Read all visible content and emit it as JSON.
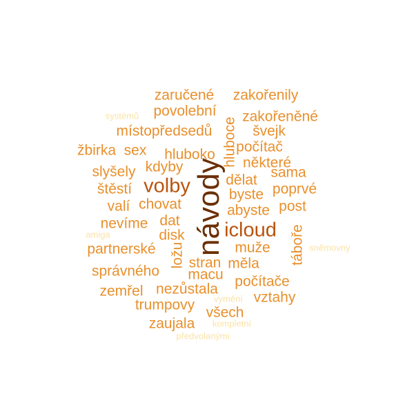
{
  "palette": {
    "pale": "#fbe3a6",
    "light": "#f2a53a",
    "mid": "#e8902c",
    "dark": "#b9530c",
    "darkest": "#6b2f04"
  },
  "words": [
    {
      "text": "návody",
      "color": "darkest",
      "vertical": true
    },
    {
      "text": "volby",
      "color": "dark"
    },
    {
      "text": "icloud",
      "color": "dark"
    },
    {
      "text": "zaručené",
      "color": "mid"
    },
    {
      "text": "zakořenily",
      "color": "mid"
    },
    {
      "text": "povolební",
      "color": "mid"
    },
    {
      "text": "zakořeněné",
      "color": "mid"
    },
    {
      "text": "systémů",
      "color": "pale"
    },
    {
      "text": "místopředsedů",
      "color": "mid"
    },
    {
      "text": "švejk",
      "color": "mid"
    },
    {
      "text": "hluboce",
      "color": "mid",
      "vertical": true
    },
    {
      "text": "žbirka",
      "color": "mid"
    },
    {
      "text": "sex",
      "color": "mid"
    },
    {
      "text": "počítač",
      "color": "mid"
    },
    {
      "text": "hluboko",
      "color": "mid"
    },
    {
      "text": "některé",
      "color": "mid"
    },
    {
      "text": "kdyby",
      "color": "mid"
    },
    {
      "text": "slyšely",
      "color": "mid"
    },
    {
      "text": "sama",
      "color": "mid"
    },
    {
      "text": "dělat",
      "color": "mid"
    },
    {
      "text": "štěstí",
      "color": "mid"
    },
    {
      "text": "poprvé",
      "color": "mid"
    },
    {
      "text": "byste",
      "color": "mid"
    },
    {
      "text": "chovat",
      "color": "mid"
    },
    {
      "text": "valí",
      "color": "mid"
    },
    {
      "text": "abyste",
      "color": "mid"
    },
    {
      "text": "post",
      "color": "mid"
    },
    {
      "text": "dat",
      "color": "mid"
    },
    {
      "text": "nevíme",
      "color": "mid"
    },
    {
      "text": "amiga",
      "color": "pale"
    },
    {
      "text": "disk",
      "color": "mid"
    },
    {
      "text": "táboře",
      "color": "mid",
      "vertical": true
    },
    {
      "text": "partnerské",
      "color": "mid"
    },
    {
      "text": "ložu",
      "color": "mid",
      "vertical": true
    },
    {
      "text": "muže",
      "color": "mid"
    },
    {
      "text": "sněmovny",
      "color": "pale"
    },
    {
      "text": "stran",
      "color": "mid"
    },
    {
      "text": "měla",
      "color": "mid"
    },
    {
      "text": "správného",
      "color": "mid"
    },
    {
      "text": "macu",
      "color": "mid"
    },
    {
      "text": "počítače",
      "color": "mid"
    },
    {
      "text": "zemřel",
      "color": "mid"
    },
    {
      "text": "nezůstala",
      "color": "mid"
    },
    {
      "text": "vztahy",
      "color": "mid"
    },
    {
      "text": "vymění",
      "color": "pale"
    },
    {
      "text": "trumpovy",
      "color": "mid"
    },
    {
      "text": "všech",
      "color": "mid"
    },
    {
      "text": "zaujala",
      "color": "mid"
    },
    {
      "text": "kompletní",
      "color": "pale"
    },
    {
      "text": "předvolanými",
      "color": "pale"
    }
  ]
}
